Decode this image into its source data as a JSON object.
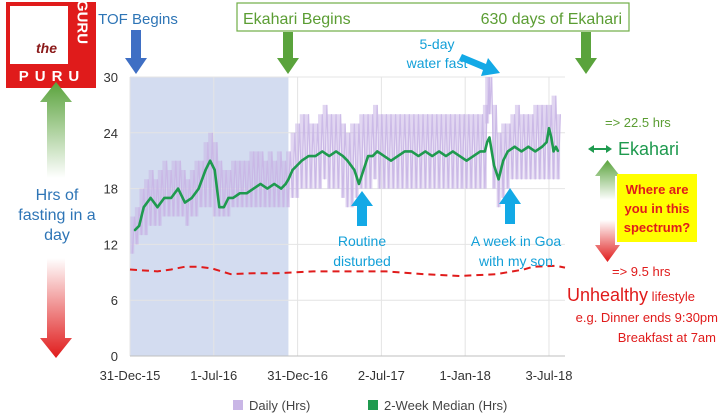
{
  "logo": {
    "letters": [
      "t",
      "h",
      "e",
      "G",
      "U",
      "R",
      "U",
      "P",
      "U",
      "R",
      "U"
    ],
    "word_the": "the",
    "word_guru": "GURU",
    "word_puru": "PURU"
  },
  "colors": {
    "daily": "#c9b6e6",
    "median": "#1f9a4f",
    "bg_band": "#d3dcf0",
    "red": "#e01b1b",
    "blue": "#2e75b6",
    "green_arrow": "#6aa84f",
    "cyan_arrow": "#13a9e6",
    "yellow_box": "#ffff00",
    "box_green": "#70ad47"
  },
  "annotations": {
    "tof_begins": "TOF Begins",
    "ekahari_begins": "Ekahari Begins",
    "days_of_ekahari": "630 days of Ekahari",
    "water_fast_line1": "5-day",
    "water_fast_line2": "water fast",
    "routine_line1": "Routine",
    "routine_line2": "disturbed",
    "goa_line1": "A week in Goa",
    "goa_line2": "with my son",
    "hrs_line1": "Hrs of",
    "hrs_line2": "fasting in a",
    "hrs_line3": "day",
    "hrs_22": "=> 22.5 hrs",
    "ekahari": "Ekahari",
    "where_line1": "Where are",
    "where_line2": "you in this",
    "where_line3": "spectrum?",
    "hrs_9": "=> 9.5 hrs",
    "unhealthy": "Unhealthy",
    "lifestyle": " lifestyle",
    "eg_line": "e.g. Dinner ends 9:30pm",
    "breakfast_line": "Breakfast at 7am"
  },
  "chart_data": {
    "type": "line",
    "title": "",
    "xlabel": "",
    "ylabel": "Hrs of fasting in a day",
    "x_domain_days": [
      0,
      950
    ],
    "ylim": [
      0,
      30
    ],
    "yticks": [
      0,
      6,
      12,
      18,
      24,
      30
    ],
    "xtick_labels": [
      "31-Dec-15",
      "1-Jul-16",
      "31-Dec-16",
      "2-Jul-17",
      "1-Jan-18",
      "3-Jul-18"
    ],
    "xtick_days": [
      0,
      183,
      366,
      549,
      732,
      915
    ],
    "tof_period_days": [
      0,
      346
    ],
    "ekahari_start_day": 346,
    "legend": [
      {
        "name": "Daily (Hrs)",
        "color": "#c9b6e6",
        "shape": "square"
      },
      {
        "name": "2-Week Median (Hrs)",
        "color": "#1f9a4f",
        "shape": "square"
      }
    ],
    "series": [
      {
        "name": "2-Week Median (Hrs)",
        "x": [
          10,
          20,
          30,
          45,
          60,
          75,
          90,
          105,
          120,
          135,
          150,
          165,
          175,
          185,
          195,
          205,
          215,
          225,
          240,
          255,
          270,
          285,
          300,
          315,
          330,
          340,
          346,
          355,
          365,
          375,
          390,
          405,
          420,
          435,
          450,
          465,
          475,
          490,
          500,
          510,
          520,
          530,
          540,
          555,
          570,
          585,
          600,
          615,
          630,
          645,
          660,
          675,
          690,
          705,
          720,
          735,
          750,
          765,
          775,
          780,
          785,
          790,
          795,
          805,
          815,
          825,
          840,
          855,
          870,
          885,
          900,
          910,
          915,
          920,
          925,
          930,
          935
        ],
        "values": [
          13.5,
          14,
          16,
          17,
          16,
          17,
          17,
          18,
          16.5,
          17,
          18,
          20,
          21,
          20,
          16,
          16,
          17,
          17,
          17.5,
          17.5,
          18,
          18.5,
          18,
          18.5,
          18,
          18.5,
          19,
          20,
          20.5,
          21,
          21.5,
          21.5,
          22,
          21.5,
          22,
          21.5,
          21,
          20,
          18.5,
          20,
          21.5,
          21.5,
          22,
          21.5,
          21,
          21.5,
          22,
          22,
          21.5,
          22,
          21.5,
          22,
          21.5,
          22,
          21.5,
          21,
          21.5,
          22,
          22,
          23,
          23.5,
          22,
          20.5,
          19,
          21,
          22,
          22.5,
          22,
          22.5,
          22,
          22.5,
          23,
          24.5,
          23.5,
          22,
          22.5,
          22
        ]
      },
      {
        "name": "Daily (Hrs)",
        "x": [
          5,
          15,
          25,
          35,
          45,
          55,
          65,
          75,
          85,
          95,
          105,
          115,
          125,
          135,
          145,
          155,
          165,
          175,
          185,
          195,
          205,
          215,
          225,
          235,
          245,
          255,
          265,
          275,
          285,
          295,
          305,
          315,
          325,
          335,
          345,
          355,
          365,
          375,
          385,
          395,
          405,
          415,
          425,
          435,
          445,
          455,
          465,
          475,
          485,
          495,
          505,
          515,
          525,
          535,
          545,
          555,
          565,
          575,
          585,
          595,
          605,
          615,
          625,
          635,
          645,
          655,
          665,
          675,
          685,
          695,
          705,
          715,
          725,
          735,
          745,
          755,
          765,
          775,
          780,
          785,
          795,
          805,
          815,
          825,
          835,
          845,
          855,
          865,
          875,
          885,
          895,
          905,
          915,
          925,
          935
        ],
        "low": [
          11,
          12,
          13,
          13,
          14,
          14,
          14,
          15,
          15,
          15,
          15,
          15,
          14,
          15,
          15,
          16,
          16,
          16,
          15,
          15,
          15,
          15,
          16,
          16,
          16,
          16,
          16,
          16,
          16,
          16,
          16,
          16,
          16,
          16,
          16,
          17,
          17,
          18,
          18,
          18,
          18,
          18,
          19,
          18,
          18,
          18,
          17,
          16,
          16,
          17,
          18,
          18,
          18,
          19,
          18,
          18,
          18,
          18,
          18,
          18,
          18,
          18,
          18,
          18,
          18,
          18,
          18,
          18,
          18,
          18,
          18,
          18,
          18,
          18,
          18,
          18,
          18,
          18,
          25,
          26,
          18,
          16,
          17,
          18,
          19,
          19,
          19,
          19,
          19,
          19,
          19,
          19,
          19,
          19,
          19
        ],
        "high": [
          15,
          16,
          18,
          19,
          20,
          19,
          20,
          21,
          20,
          21,
          21,
          20,
          19,
          20,
          21,
          21,
          23,
          24,
          23,
          21,
          20,
          20,
          21,
          21,
          21,
          21,
          22,
          22,
          22,
          21,
          22,
          21,
          22,
          21,
          22,
          24,
          25,
          26,
          26,
          25,
          25,
          26,
          27,
          26,
          26,
          26,
          25,
          24,
          25,
          25,
          26,
          26,
          26,
          27,
          26,
          26,
          26,
          26,
          26,
          26,
          26,
          26,
          26,
          26,
          26,
          26,
          26,
          26,
          26,
          26,
          26,
          26,
          26,
          26,
          26,
          26,
          26,
          27,
          30,
          30,
          27,
          24,
          25,
          25,
          26,
          27,
          26,
          26,
          26,
          27,
          27,
          27,
          27,
          28,
          26
        ]
      },
      {
        "name": "Unhealthy lifestyle reference",
        "x": [
          0,
          60,
          90,
          120,
          150,
          180,
          220,
          270,
          320,
          400,
          480,
          560,
          640,
          720,
          800,
          860,
          880,
          930,
          950
        ],
        "values": [
          9.3,
          9.1,
          9.3,
          9.6,
          9.6,
          9.4,
          8.8,
          8.9,
          8.9,
          9.1,
          9.1,
          9.1,
          8.8,
          8.6,
          8.8,
          9.3,
          9.6,
          9.7,
          9.5
        ]
      }
    ]
  }
}
